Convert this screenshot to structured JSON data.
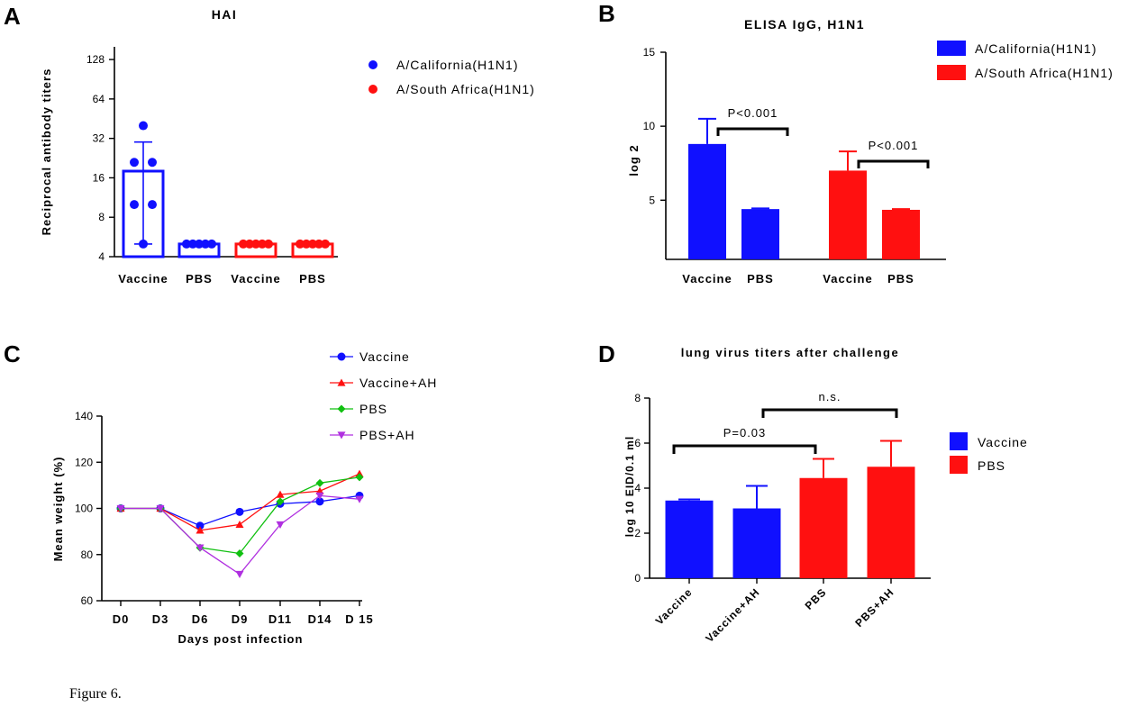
{
  "caption": "Figure 6.",
  "colors": {
    "blue": "#1010ff",
    "red": "#ff1010",
    "green": "#10c010",
    "purple": "#b030e0",
    "black": "#000000"
  },
  "chart_data": [
    {
      "panel": "A",
      "type": "bar",
      "title": "HAI",
      "ylabel": "Reciprocal antibody titers",
      "xlabel": "",
      "yscale": "log2",
      "ylim": [
        4,
        160
      ],
      "yticks": [
        4,
        8,
        16,
        32,
        64,
        128
      ],
      "ytick_labels": [
        "4",
        "8",
        "16",
        "32",
        "64",
        "128"
      ],
      "categories": [
        "Vaccine",
        "PBS",
        "Vaccine",
        "PBS"
      ],
      "bar_style": "outline",
      "bars": [
        {
          "label": "Vaccine",
          "series": "A/California(H1N1)",
          "color": "blue",
          "value": 18,
          "err_low": 5,
          "err_high": 30,
          "points": [
            40,
            21,
            21,
            10,
            10,
            5
          ]
        },
        {
          "label": "PBS",
          "series": "A/California(H1N1)",
          "color": "blue",
          "value": 5,
          "points": [
            5,
            5,
            5,
            5,
            5
          ]
        },
        {
          "label": "Vaccine",
          "series": "A/South Africa(H1N1)",
          "color": "red",
          "value": 5,
          "points": [
            5,
            5,
            5,
            5,
            5
          ]
        },
        {
          "label": "PBS",
          "series": "A/South Africa(H1N1)",
          "color": "red",
          "value": 5,
          "points": [
            5,
            5,
            5,
            5,
            5
          ]
        }
      ],
      "legend": [
        {
          "label": "A/California(H1N1)",
          "color": "blue",
          "marker": "circle"
        },
        {
          "label": "A/South Africa(H1N1)",
          "color": "red",
          "marker": "circle"
        }
      ]
    },
    {
      "panel": "B",
      "type": "bar",
      "title": "ELISA IgG, H1N1",
      "ylabel": "log 2",
      "xlabel": "",
      "ylim": [
        1,
        15
      ],
      "yticks": [
        5,
        10,
        15
      ],
      "ytick_labels": [
        "5",
        "10",
        "15"
      ],
      "categories": [
        "Vaccine",
        "PBS",
        "Vaccine",
        "PBS"
      ],
      "bars": [
        {
          "label": "Vaccine",
          "series": "A/California(H1N1)",
          "color": "blue",
          "value": 8.8,
          "err_high": 10.5
        },
        {
          "label": "PBS",
          "series": "A/California(H1N1)",
          "color": "blue",
          "value": 4.4,
          "err_high": 4.45
        },
        {
          "label": "Vaccine",
          "series": "A/South Africa(H1N1)",
          "color": "red",
          "value": 7.0,
          "err_high": 8.3
        },
        {
          "label": "PBS",
          "series": "A/South Africa(H1N1)",
          "color": "red",
          "value": 4.35,
          "err_high": 4.4
        }
      ],
      "annotations": [
        {
          "text": "P<0.001",
          "from_bar": 0,
          "to_bar": 1
        },
        {
          "text": "P<0.001",
          "from_bar": 2,
          "to_bar": 3
        }
      ],
      "legend": [
        {
          "label": "A/California(H1N1)",
          "color": "blue"
        },
        {
          "label": "A/South Africa(H1N1)",
          "color": "red"
        }
      ]
    },
    {
      "panel": "C",
      "type": "line",
      "title": "",
      "xlabel": "Days post infection",
      "ylabel": "Mean weight (%)",
      "ylim": [
        60,
        140
      ],
      "yticks": [
        60,
        80,
        100,
        120,
        140
      ],
      "ytick_labels": [
        "60",
        "80",
        "100",
        "120",
        "140"
      ],
      "categories": [
        "D0",
        "D3",
        "D6",
        "D9",
        "D11",
        "D14",
        "D 15"
      ],
      "series": [
        {
          "name": "Vaccine",
          "color": "blue",
          "marker": "circle",
          "values": [
            100,
            100,
            92.5,
            98.5,
            102,
            103,
            105.5
          ]
        },
        {
          "name": "Vaccine+AH",
          "color": "red",
          "marker": "triangle-up",
          "values": [
            100,
            100,
            90.5,
            93,
            106,
            107.5,
            115
          ]
        },
        {
          "name": "PBS",
          "color": "green",
          "marker": "diamond",
          "values": [
            100,
            100,
            83,
            80.5,
            103,
            111,
            113.5
          ]
        },
        {
          "name": "PBS+AH",
          "color": "purple",
          "marker": "triangle-down",
          "values": [
            100,
            100,
            83,
            71.5,
            93,
            105.5,
            104
          ]
        }
      ]
    },
    {
      "panel": "D",
      "type": "bar",
      "title": "lung virus titers after challenge",
      "ylabel": "log 10 EID/0.1 ml",
      "xlabel": "",
      "ylim": [
        0,
        8
      ],
      "yticks": [
        0,
        2,
        4,
        6,
        8
      ],
      "ytick_labels": [
        "0",
        "2",
        "4",
        "6",
        "8"
      ],
      "categories": [
        "Vaccine",
        "Vaccine+AH",
        "PBS",
        "PBS+AH"
      ],
      "bars": [
        {
          "label": "Vaccine",
          "color": "blue",
          "value": 3.45,
          "err_high": 3.5
        },
        {
          "label": "Vaccine+AH",
          "color": "blue",
          "value": 3.1,
          "err_high": 4.1
        },
        {
          "label": "PBS",
          "color": "red",
          "value": 4.45,
          "err_high": 5.3
        },
        {
          "label": "PBS+AH",
          "color": "red",
          "value": 4.95,
          "err_high": 6.1
        }
      ],
      "annotations": [
        {
          "text": "P=0.03",
          "from_bar": 0,
          "to_bar": 2
        },
        {
          "text": "n.s.",
          "from_bar": 1,
          "to_bar": 3
        }
      ],
      "legend": [
        {
          "label": "Vaccine",
          "color": "blue"
        },
        {
          "label": "PBS",
          "color": "red"
        }
      ]
    }
  ]
}
